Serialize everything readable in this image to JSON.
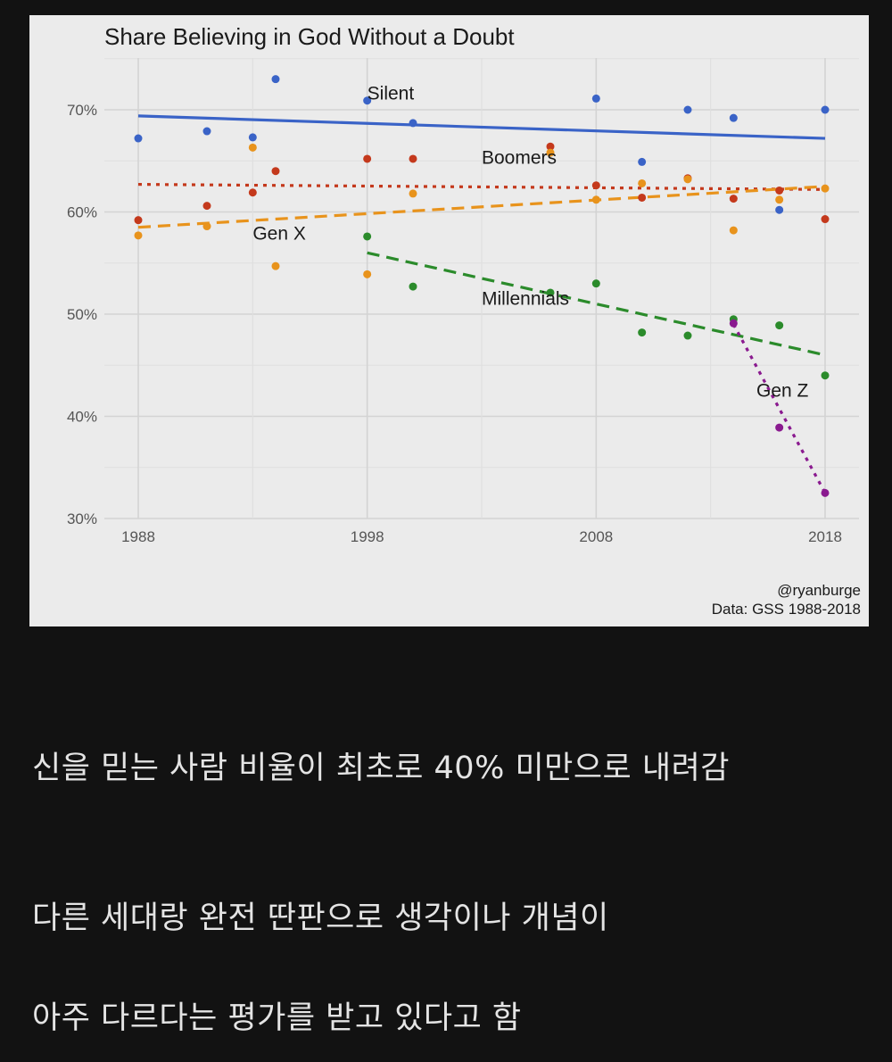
{
  "chart_data": {
    "type": "scatter",
    "title": "Share Believing in God Without a Doubt",
    "xlabel": "",
    "ylabel": "",
    "xlim": [
      1988,
      2018
    ],
    "xticks": [
      1988,
      1998,
      2008,
      2018
    ],
    "xtick_labels": [
      "1988",
      "1998",
      "2008",
      "2018"
    ],
    "ylim": [
      30,
      75
    ],
    "yticks": [
      30,
      40,
      50,
      60,
      70
    ],
    "ytick_labels": [
      "30%",
      "40%",
      "50%",
      "60%",
      "70%"
    ],
    "grid": true,
    "credit": "@ryanburge",
    "source": "Data: GSS 1988-2018",
    "series": [
      {
        "name": "Silent",
        "color": "#3a63c7",
        "line_style": "solid",
        "trend": [
          [
            1988,
            69.4
          ],
          [
            2018,
            67.2
          ]
        ],
        "label_at": [
          1998,
          71.0
        ],
        "x": [
          1988,
          1991,
          1993,
          1994,
          1998,
          2000,
          2008,
          2010,
          2012,
          2014,
          2016,
          2018
        ],
        "y": [
          67.2,
          67.9,
          67.3,
          73.0,
          70.9,
          68.7,
          71.1,
          64.9,
          70.0,
          69.2,
          60.2,
          70.0
        ]
      },
      {
        "name": "Boomers",
        "color": "#c4391c",
        "line_style": "dotted",
        "trend": [
          [
            1988,
            62.7
          ],
          [
            2018,
            62.2
          ]
        ],
        "label_at": [
          2003,
          64.7
        ],
        "x": [
          1988,
          1991,
          1993,
          1994,
          1998,
          2000,
          2006,
          2008,
          2010,
          2012,
          2014,
          2016,
          2018
        ],
        "y": [
          59.2,
          60.6,
          61.9,
          64.0,
          65.2,
          65.2,
          66.4,
          62.6,
          61.4,
          63.3,
          61.3,
          62.1,
          59.3
        ]
      },
      {
        "name": "Gen X",
        "color": "#e8931c",
        "line_style": "dashed",
        "trend": [
          [
            1988,
            58.5
          ],
          [
            2018,
            62.5
          ]
        ],
        "label_at": [
          1993,
          57.3
        ],
        "x": [
          1988,
          1991,
          1993,
          1994,
          1998,
          2000,
          2006,
          2008,
          2010,
          2012,
          2014,
          2016,
          2018
        ],
        "y": [
          57.7,
          58.6,
          66.3,
          54.7,
          53.9,
          61.8,
          65.8,
          61.2,
          62.8,
          63.2,
          58.2,
          61.2,
          62.3
        ]
      },
      {
        "name": "Millennials",
        "color": "#2b8b2b",
        "line_style": "dashed",
        "trend": [
          [
            1998,
            56.0
          ],
          [
            2018,
            46.0
          ]
        ],
        "label_at": [
          2003,
          50.9
        ],
        "x": [
          1998,
          2000,
          2006,
          2008,
          2010,
          2012,
          2014,
          2016,
          2018
        ],
        "y": [
          57.6,
          52.7,
          52.1,
          53.0,
          48.2,
          47.9,
          49.5,
          48.9,
          44.0
        ]
      },
      {
        "name": "Gen Z",
        "color": "#8a1a8f",
        "line_style": "dotted",
        "trend": [
          [
            2014,
            49.0
          ],
          [
            2018,
            32.5
          ]
        ],
        "label_at": [
          2015,
          41.9
        ],
        "x": [
          2014,
          2016,
          2018
        ],
        "y": [
          49.1,
          38.9,
          32.5
        ]
      }
    ]
  },
  "post": {
    "line1": "신을 믿는 사람 비율이 최초로 40% 미만으로 내려감",
    "line2": "다른 세대랑 완전 딴판으로 생각이나 개념이",
    "line3": "아주 다르다는 평가를 받고 있다고 함"
  }
}
